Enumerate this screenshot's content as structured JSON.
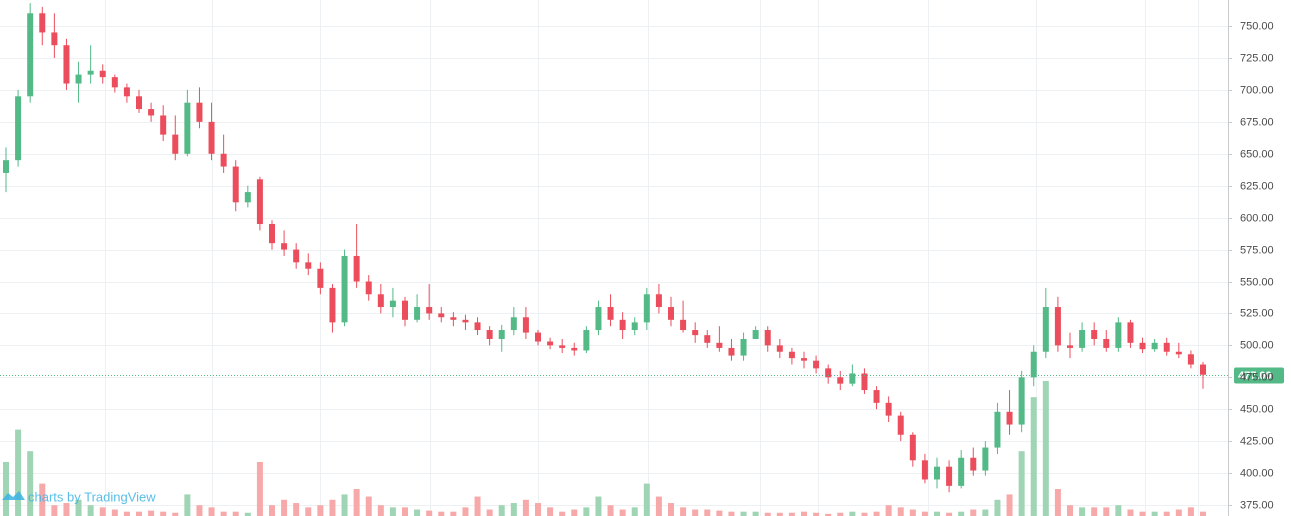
{
  "chart_data": {
    "type": "candlestick",
    "watermark": "charts by TradingView",
    "open": [
      635,
      645,
      695,
      760,
      745,
      735,
      705,
      712,
      715,
      710,
      702,
      695,
      685,
      680,
      665,
      650,
      690,
      675,
      650,
      640,
      612,
      630,
      595,
      580,
      575,
      565,
      560,
      545,
      518,
      570,
      550,
      540,
      530,
      535,
      520,
      530,
      525,
      522,
      520,
      518,
      512,
      505,
      512,
      522,
      510,
      503,
      500,
      498,
      496,
      512,
      530,
      520,
      512,
      518,
      540,
      530,
      520,
      512,
      508,
      502,
      498,
      492,
      505,
      512,
      500,
      495,
      490,
      488,
      482,
      475,
      470,
      478,
      465,
      455,
      445,
      430,
      410,
      395,
      405,
      390,
      412,
      402,
      420,
      448,
      438,
      475,
      495,
      530,
      500,
      498,
      512,
      505,
      498,
      518,
      502,
      497,
      502,
      495,
      493,
      485
    ],
    "high": [
      655,
      700,
      768,
      765,
      760,
      740,
      722,
      735,
      720,
      712,
      705,
      700,
      690,
      688,
      680,
      700,
      702,
      690,
      665,
      645,
      625,
      632,
      598,
      590,
      580,
      572,
      565,
      548,
      575,
      595,
      555,
      548,
      545,
      538,
      540,
      548,
      530,
      526,
      524,
      522,
      515,
      516,
      530,
      530,
      512,
      506,
      505,
      502,
      515,
      535,
      540,
      526,
      522,
      545,
      548,
      538,
      535,
      518,
      512,
      515,
      505,
      510,
      515,
      515,
      505,
      498,
      495,
      492,
      485,
      480,
      485,
      482,
      468,
      460,
      448,
      432,
      415,
      412,
      410,
      418,
      420,
      425,
      455,
      465,
      480,
      500,
      545,
      538,
      510,
      518,
      518,
      512,
      522,
      520,
      506,
      505,
      506,
      502,
      496,
      487
    ],
    "low": [
      620,
      640,
      690,
      735,
      725,
      700,
      690,
      705,
      705,
      698,
      690,
      682,
      675,
      660,
      645,
      648,
      670,
      645,
      635,
      605,
      608,
      590,
      575,
      570,
      560,
      555,
      540,
      510,
      515,
      545,
      535,
      525,
      522,
      515,
      518,
      520,
      518,
      515,
      512,
      508,
      500,
      495,
      508,
      505,
      500,
      497,
      494,
      492,
      494,
      508,
      515,
      505,
      508,
      512,
      525,
      515,
      510,
      502,
      498,
      495,
      488,
      488,
      505,
      495,
      490,
      485,
      482,
      478,
      470,
      465,
      468,
      462,
      450,
      440,
      425,
      405,
      392,
      388,
      385,
      388,
      398,
      398,
      415,
      430,
      432,
      468,
      490,
      495,
      490,
      495,
      500,
      495,
      495,
      498,
      494,
      495,
      492,
      490,
      482,
      466
    ],
    "close": [
      645,
      695,
      760,
      745,
      735,
      705,
      712,
      715,
      710,
      702,
      695,
      685,
      680,
      665,
      650,
      690,
      675,
      650,
      640,
      612,
      620,
      595,
      580,
      575,
      565,
      560,
      545,
      518,
      570,
      550,
      540,
      530,
      535,
      520,
      530,
      525,
      522,
      520,
      518,
      512,
      505,
      512,
      522,
      510,
      503,
      500,
      498,
      496,
      512,
      530,
      520,
      512,
      518,
      540,
      530,
      520,
      512,
      508,
      502,
      498,
      492,
      505,
      512,
      500,
      495,
      490,
      488,
      482,
      475,
      470,
      478,
      465,
      455,
      445,
      430,
      410,
      395,
      405,
      390,
      412,
      402,
      420,
      448,
      438,
      475,
      495,
      530,
      500,
      498,
      512,
      505,
      498,
      518,
      502,
      497,
      502,
      495,
      493,
      485,
      477
    ],
    "volume": [
      50,
      80,
      60,
      30,
      10,
      12,
      15,
      10,
      8,
      6,
      4,
      4,
      5,
      4,
      3,
      20,
      10,
      8,
      4,
      4,
      3,
      50,
      10,
      15,
      12,
      8,
      10,
      15,
      20,
      25,
      18,
      10,
      8,
      8,
      6,
      5,
      4,
      4,
      8,
      18,
      6,
      10,
      12,
      15,
      12,
      8,
      4,
      6,
      8,
      18,
      10,
      6,
      8,
      30,
      18,
      12,
      8,
      6,
      6,
      5,
      4,
      4,
      4,
      3,
      3,
      3,
      4,
      3,
      2,
      3,
      4,
      3,
      4,
      10,
      8,
      6,
      4,
      4,
      3,
      4,
      6,
      6,
      15,
      20,
      60,
      110,
      125,
      25,
      10,
      8,
      8,
      8,
      10,
      6,
      4,
      4,
      4,
      6,
      8,
      4
    ],
    "up_color": "#53b987",
    "down_color": "#eb4d5c",
    "volume_up_color": "#9fd4b4",
    "volume_down_color": "#f7a9a9",
    "ylim": [
      366.4,
      770.4
    ],
    "yticks": [
      {
        "value": 375,
        "label": "375.00"
      },
      {
        "value": 400,
        "label": "400.00"
      },
      {
        "value": 425,
        "label": "425.00"
      },
      {
        "value": 450,
        "label": "450.00"
      },
      {
        "value": 475,
        "label": "475.00"
      },
      {
        "value": 500,
        "label": "500.00"
      },
      {
        "value": 525,
        "label": "525.00"
      },
      {
        "value": 550,
        "label": "550.00"
      },
      {
        "value": 575,
        "label": "575.00"
      },
      {
        "value": 600,
        "label": "600.00"
      },
      {
        "value": 625,
        "label": "625.00"
      },
      {
        "value": 650,
        "label": "650.00"
      },
      {
        "value": 675,
        "label": "675.00"
      },
      {
        "value": 700,
        "label": "700.00"
      },
      {
        "value": 725,
        "label": "725.00"
      },
      {
        "value": 750,
        "label": "750.00"
      }
    ],
    "last_price": {
      "value": 477,
      "label": "477.00"
    },
    "grid": true
  }
}
